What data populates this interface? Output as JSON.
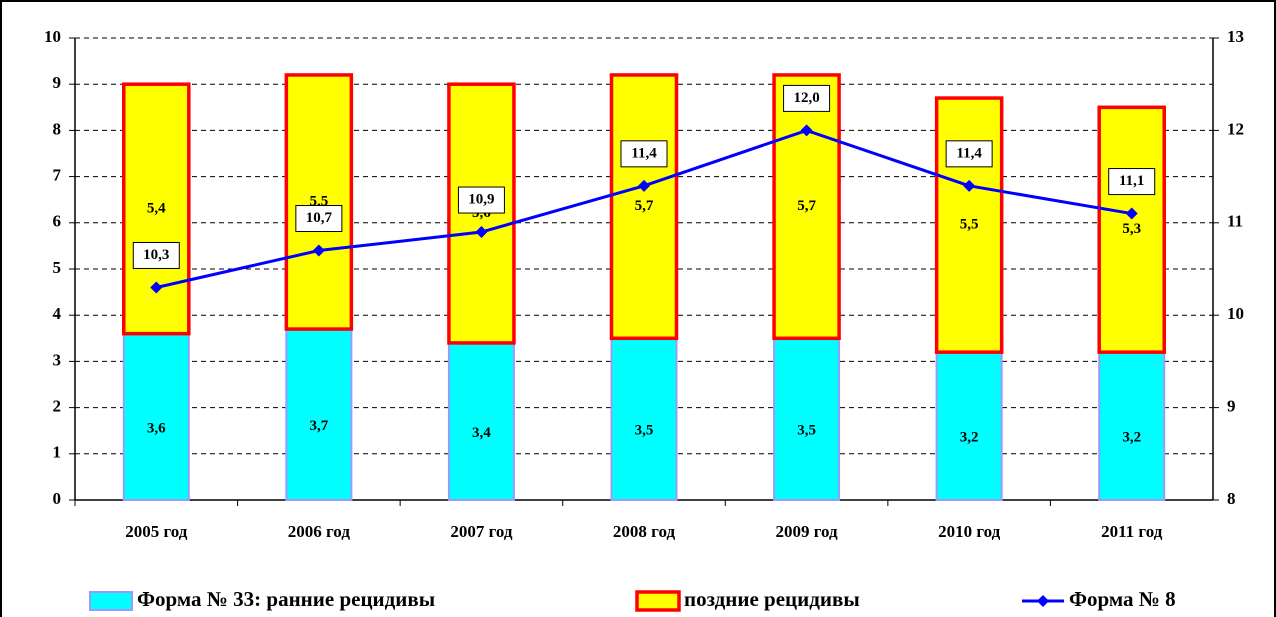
{
  "chart_data": {
    "type": "stacked-bar-line",
    "categories": [
      "2005 год",
      "2006 год",
      "2007 год",
      "2008 год",
      "2009 год",
      "2010 год",
      "2011 год"
    ],
    "series": [
      {
        "name": "Форма № 33: ранние рецидивы",
        "color": "#00ffff",
        "stroke": "#9999ff",
        "values": [
          3.6,
          3.7,
          3.4,
          3.5,
          3.5,
          3.2,
          3.2
        ],
        "value_labels": [
          "3,6",
          "3,7",
          "3,4",
          "3,5",
          "3,5",
          "3,2",
          "3,2"
        ]
      },
      {
        "name": "поздние рецидивы",
        "color": "#ffff00",
        "stroke": "#ff0000",
        "values": [
          5.4,
          5.5,
          5.6,
          5.7,
          5.7,
          5.5,
          5.3
        ],
        "value_labels": [
          "5,4",
          "5,5",
          "5,6",
          "5,7",
          "5,7",
          "5,5",
          "5,3"
        ]
      },
      {
        "name": "Форма № 8",
        "color": "#0000ff",
        "axis": "y2",
        "values": [
          10.3,
          10.7,
          10.9,
          11.4,
          12.0,
          11.4,
          11.1
        ],
        "value_labels": [
          "10,3",
          "10,7",
          "10,9",
          "11,4",
          "12,0",
          "11,4",
          "11,1"
        ]
      }
    ],
    "ylim": [
      0,
      10
    ],
    "yticks": [
      0,
      1,
      2,
      3,
      4,
      5,
      6,
      7,
      8,
      9,
      10
    ],
    "y2lim": [
      8,
      13
    ],
    "y2ticks": [
      8,
      9,
      10,
      11,
      12,
      13
    ],
    "grid": true,
    "legend_position": "bottom"
  }
}
